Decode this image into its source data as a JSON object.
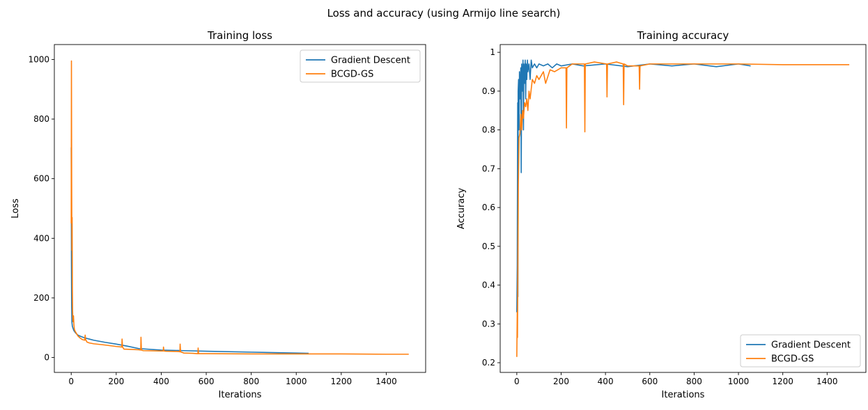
{
  "figure": {
    "suptitle": "Loss and accuracy (using Armijo line search)"
  },
  "colors": {
    "gd": "#1f77b4",
    "bcgd": "#ff7f0e"
  },
  "chart_data": [
    {
      "type": "line",
      "title": "Training loss",
      "xlabel": "Iterations",
      "ylabel": "Loss",
      "xlim": [
        -75,
        1575
      ],
      "ylim": [
        -50,
        1050
      ],
      "xticks": [
        0,
        200,
        400,
        600,
        800,
        1000,
        1200,
        1400
      ],
      "yticks": [
        0,
        200,
        400,
        600,
        800,
        1000
      ],
      "legend": {
        "position": "top-right"
      },
      "series": [
        {
          "name": "Gradient Descent",
          "color": "#1f77b4",
          "x": [
            0,
            1,
            2,
            3,
            5,
            8,
            12,
            20,
            30,
            45,
            60,
            80,
            100,
            150,
            200,
            250,
            300,
            400,
            500,
            600,
            800,
            1000,
            1055
          ],
          "y": [
            705,
            330,
            170,
            120,
            105,
            98,
            90,
            82,
            75,
            70,
            66,
            62,
            58,
            51,
            45,
            38,
            30,
            25,
            23,
            21,
            18,
            15,
            14
          ]
        },
        {
          "name": "BCGD-GS",
          "color": "#ff7f0e",
          "x": [
            0,
            1,
            2,
            3,
            4,
            5,
            6,
            7,
            8,
            10,
            12,
            14,
            16,
            20,
            25,
            30,
            40,
            50,
            60,
            62,
            64,
            70,
            80,
            100,
            150,
            200,
            225,
            226,
            228,
            235,
            300,
            309,
            310,
            312,
            320,
            400,
            409,
            410,
            412,
            420,
            480,
            483,
            484,
            486,
            490,
            500,
            540,
            560,
            563,
            564,
            566,
            570,
            600,
            800,
            1000,
            1200,
            1400,
            1500
          ],
          "y": [
            450,
            995,
            600,
            360,
            470,
            240,
            160,
            130,
            120,
            140,
            110,
            95,
            90,
            85,
            78,
            72,
            65,
            60,
            58,
            75,
            60,
            52,
            49,
            46,
            42,
            37,
            35,
            62,
            35,
            28,
            26,
            25,
            68,
            25,
            23,
            22,
            22,
            35,
            22,
            21,
            20,
            19,
            45,
            19,
            18,
            15,
            14,
            13,
            13,
            32,
            13,
            13,
            13,
            12,
            12,
            12,
            11,
            11
          ]
        }
      ]
    },
    {
      "type": "line",
      "title": "Training accuracy",
      "xlabel": "Iterations",
      "ylabel": "Accuracy",
      "xlim": [
        -75,
        1575
      ],
      "ylim": [
        0.175,
        1.02
      ],
      "xticks": [
        0,
        200,
        400,
        600,
        800,
        1000,
        1200,
        1400
      ],
      "yticks": [
        0.2,
        0.3,
        0.4,
        0.5,
        0.6,
        0.7,
        0.8,
        0.9,
        1.0
      ],
      "legend": {
        "position": "bottom-right"
      },
      "series": [
        {
          "name": "Gradient Descent",
          "color": "#1f77b4",
          "x": [
            0,
            2,
            4,
            5,
            6,
            8,
            10,
            12,
            15,
            18,
            20,
            22,
            25,
            28,
            30,
            32,
            35,
            38,
            40,
            42,
            45,
            48,
            50,
            55,
            60,
            65,
            70,
            80,
            90,
            100,
            120,
            140,
            160,
            180,
            200,
            250,
            300,
            400,
            500,
            600,
            700,
            800,
            900,
            1000,
            1055
          ],
          "y": [
            0.33,
            0.45,
            0.87,
            0.37,
            0.9,
            0.93,
            0.8,
            0.95,
            0.88,
            0.96,
            0.69,
            0.97,
            0.9,
            0.98,
            0.8,
            0.97,
            0.92,
            0.98,
            0.88,
            0.97,
            0.93,
            0.98,
            0.95,
            0.97,
            0.93,
            0.98,
            0.96,
            0.97,
            0.96,
            0.97,
            0.965,
            0.97,
            0.96,
            0.97,
            0.965,
            0.97,
            0.965,
            0.97,
            0.963,
            0.97,
            0.965,
            0.97,
            0.963,
            0.97,
            0.965
          ]
        },
        {
          "name": "BCGD-GS",
          "color": "#ff7f0e",
          "x": [
            0,
            2,
            3,
            5,
            7,
            10,
            14,
            18,
            22,
            26,
            30,
            35,
            40,
            45,
            50,
            55,
            60,
            70,
            80,
            90,
            100,
            120,
            130,
            150,
            170,
            200,
            222,
            224,
            226,
            250,
            305,
            307,
            309,
            350,
            405,
            407,
            409,
            450,
            480,
            482,
            484,
            500,
            552,
            554,
            556,
            600,
            800,
            1000,
            1200,
            1270,
            1300,
            1400,
            1480,
            1490,
            1500
          ],
          "y": [
            0.215,
            0.33,
            0.265,
            0.47,
            0.66,
            0.78,
            0.79,
            0.84,
            0.8,
            0.85,
            0.83,
            0.87,
            0.86,
            0.88,
            0.85,
            0.9,
            0.88,
            0.93,
            0.92,
            0.94,
            0.93,
            0.95,
            0.92,
            0.955,
            0.95,
            0.96,
            0.96,
            0.805,
            0.96,
            0.97,
            0.97,
            0.795,
            0.97,
            0.975,
            0.97,
            0.885,
            0.97,
            0.975,
            0.97,
            0.865,
            0.97,
            0.965,
            0.965,
            0.905,
            0.965,
            0.97,
            0.97,
            0.97,
            0.968,
            0.968,
            0.968,
            0.968,
            0.968,
            0.968,
            0.968
          ]
        }
      ]
    }
  ]
}
